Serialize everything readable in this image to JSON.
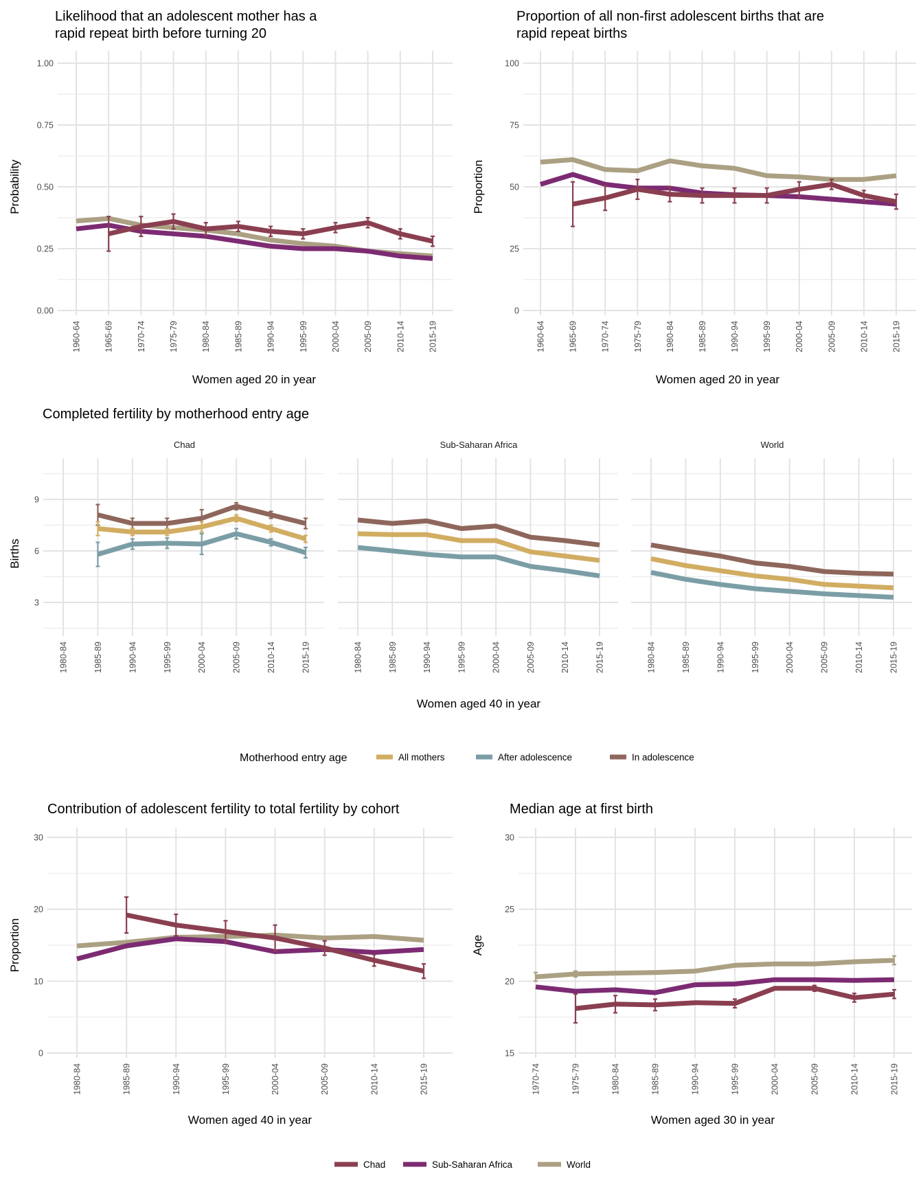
{
  "colors": {
    "chad": "#8a3f50",
    "ssa": "#7c2b72",
    "world": "#aba083",
    "all_mothers": "#d1ad62",
    "after_adolescence": "#7b9ea6",
    "in_adolescence": "#8e665b"
  },
  "chart_data": [
    {
      "id": "rapid-repeat-likelihood",
      "type": "line",
      "title": "Likelihood that an adolescent mother has a rapid repeat birth before turning 20",
      "title_lines": [
        "Likelihood that an adolescent mother has a",
        "rapid repeat birth before turning 20"
      ],
      "xlabel": "Women aged 20 in year",
      "ylabel": "Probability",
      "ylim": [
        0,
        1
      ],
      "yticks": [
        "0.00",
        "0.25",
        "0.50",
        "0.75",
        "1.00"
      ],
      "grid": true,
      "categories": [
        "1960-64",
        "1965-69",
        "1970-74",
        "1975-79",
        "1980-84",
        "1985-89",
        "1990-94",
        "1995-99",
        "2000-04",
        "2005-09",
        "2010-14",
        "2015-19"
      ],
      "series": [
        {
          "name": "World",
          "color_key": "world",
          "values": [
            0.362,
            0.372,
            0.345,
            0.335,
            0.325,
            0.31,
            0.285,
            0.27,
            0.26,
            0.24,
            0.23,
            0.22
          ],
          "error": null
        },
        {
          "name": "Sub-Saharan Africa",
          "color_key": "ssa",
          "values": [
            0.33,
            0.345,
            0.32,
            0.31,
            0.3,
            0.28,
            0.26,
            0.25,
            0.25,
            0.24,
            0.22,
            0.21
          ],
          "error": null
        },
        {
          "name": "Chad",
          "color_key": "chad",
          "values": [
            null,
            0.31,
            0.34,
            0.36,
            0.33,
            0.34,
            0.32,
            0.31,
            0.335,
            0.355,
            0.31,
            0.28
          ],
          "error": [
            null,
            0.07,
            0.04,
            0.03,
            0.025,
            0.02,
            0.02,
            0.02,
            0.02,
            0.02,
            0.02,
            0.02
          ]
        }
      ]
    },
    {
      "id": "rapid-repeat-proportion",
      "type": "line",
      "title": "Proportion of all non-first adolescent births that are rapid repeat births",
      "title_lines": [
        "Proportion of all non-first adolescent births that are",
        "rapid repeat births"
      ],
      "xlabel": "Women aged 20 in year",
      "ylabel": "Proportion",
      "ylim": [
        0,
        100
      ],
      "yticks": [
        "0",
        "25",
        "50",
        "75",
        "100"
      ],
      "grid": true,
      "categories": [
        "1960-64",
        "1965-69",
        "1970-74",
        "1975-79",
        "1980-84",
        "1985-89",
        "1990-94",
        "1995-99",
        "2000-04",
        "2005-09",
        "2010-14",
        "2015-19"
      ],
      "series": [
        {
          "name": "World",
          "color_key": "world",
          "values": [
            60,
            61,
            57,
            56.5,
            60.5,
            58.5,
            57.5,
            54.5,
            54,
            53,
            53,
            54.5
          ],
          "error": null
        },
        {
          "name": "Sub-Saharan Africa",
          "color_key": "ssa",
          "values": [
            51,
            55,
            51,
            49.5,
            49.5,
            47.5,
            46.8,
            46.5,
            46,
            45,
            44,
            43
          ],
          "error": null
        },
        {
          "name": "Chad",
          "color_key": "chad",
          "values": [
            null,
            43,
            45.5,
            49,
            47,
            46.5,
            46.5,
            46.5,
            49,
            51,
            46.5,
            44
          ],
          "error": [
            null,
            9,
            5,
            4,
            3,
            3,
            3,
            3,
            3,
            2,
            2,
            3
          ]
        }
      ]
    },
    {
      "id": "completed-fertility",
      "type": "line",
      "title": "Completed fertility by motherhood entry age",
      "xlabel": "Women aged 40 in year",
      "ylabel": "Births",
      "ylim": [
        1.2,
        11.4
      ],
      "yticks": [
        "3",
        "6",
        "9"
      ],
      "grid": true,
      "categories": [
        "1980-84",
        "1985-89",
        "1990-94",
        "1995-99",
        "2000-04",
        "2005-09",
        "2010-14",
        "2015-19"
      ],
      "legend": {
        "title": "Motherhood entry age",
        "entries": [
          {
            "label": "All mothers",
            "color_key": "all_mothers"
          },
          {
            "label": "After adolescence",
            "color_key": "after_adolescence"
          },
          {
            "label": "In adolescence",
            "color_key": "in_adolescence"
          }
        ]
      },
      "facets": [
        {
          "name": "Chad",
          "series": [
            {
              "name": "In adolescence",
              "color_key": "in_adolescence",
              "values": [
                null,
                8.1,
                7.6,
                7.6,
                7.9,
                8.6,
                8.1,
                7.6
              ],
              "error": [
                null,
                0.6,
                0.3,
                0.3,
                0.5,
                0.2,
                0.2,
                0.3
              ]
            },
            {
              "name": "All mothers",
              "color_key": "all_mothers",
              "values": [
                null,
                7.3,
                7.1,
                7.1,
                7.4,
                7.9,
                7.3,
                6.7
              ],
              "error": [
                null,
                0.4,
                0.2,
                0.2,
                0.3,
                0.2,
                0.2,
                0.2
              ]
            },
            {
              "name": "After adolescence",
              "color_key": "after_adolescence",
              "values": [
                null,
                5.8,
                6.4,
                6.45,
                6.4,
                7.0,
                6.5,
                5.9
              ],
              "error": [
                null,
                0.7,
                0.3,
                0.3,
                0.6,
                0.3,
                0.2,
                0.3
              ]
            }
          ]
        },
        {
          "name": "Sub-Saharan Africa",
          "series": [
            {
              "name": "In adolescence",
              "color_key": "in_adolescence",
              "values": [
                7.8,
                7.6,
                7.75,
                7.3,
                7.45,
                6.8,
                6.6,
                6.35
              ],
              "error": null
            },
            {
              "name": "All mothers",
              "color_key": "all_mothers",
              "values": [
                7.0,
                6.95,
                6.95,
                6.6,
                6.6,
                5.95,
                5.7,
                5.45
              ],
              "error": null
            },
            {
              "name": "After adolescence",
              "color_key": "after_adolescence",
              "values": [
                6.2,
                6.0,
                5.8,
                5.65,
                5.65,
                5.1,
                4.85,
                4.55
              ],
              "error": null
            }
          ]
        },
        {
          "name": "World",
          "series": [
            {
              "name": "In adolescence",
              "color_key": "in_adolescence",
              "values": [
                6.35,
                6.0,
                5.7,
                5.3,
                5.1,
                4.8,
                4.7,
                4.65
              ],
              "error": null
            },
            {
              "name": "All mothers",
              "color_key": "all_mothers",
              "values": [
                5.55,
                5.15,
                4.85,
                4.55,
                4.35,
                4.05,
                3.95,
                3.85
              ],
              "error": null
            },
            {
              "name": "After adolescence",
              "color_key": "after_adolescence",
              "values": [
                4.75,
                4.35,
                4.05,
                3.8,
                3.65,
                3.5,
                3.4,
                3.3
              ],
              "error": null
            }
          ]
        }
      ]
    },
    {
      "id": "adolescent-contribution",
      "type": "line",
      "title": "Contribution of adolescent fertility to total fertility by cohort",
      "xlabel": "Women aged 40 in year",
      "ylabel": "Proportion",
      "ylim": [
        0,
        30
      ],
      "yticks": [
        "0",
        "10",
        "20",
        "30"
      ],
      "grid": true,
      "categories": [
        "1980-84",
        "1985-89",
        "1990-94",
        "1995-99",
        "2000-04",
        "2005-09",
        "2010-14",
        "2015-19"
      ],
      "series": [
        {
          "name": "World",
          "color_key": "world",
          "values": [
            14.9,
            15.4,
            16.1,
            16.2,
            16.4,
            16.0,
            16.2,
            15.7
          ],
          "error": null
        },
        {
          "name": "Sub-Saharan Africa",
          "color_key": "ssa",
          "values": [
            13.1,
            14.9,
            15.9,
            15.5,
            14.1,
            14.4,
            14.0,
            14.4
          ],
          "error": null
        },
        {
          "name": "Chad",
          "color_key": "chad",
          "values": [
            null,
            19.2,
            17.8,
            16.9,
            16.0,
            14.6,
            12.9,
            11.4
          ],
          "error": [
            null,
            2.5,
            1.5,
            1.5,
            1.8,
            1.0,
            0.8,
            1.0
          ]
        }
      ]
    },
    {
      "id": "median-age-first-birth",
      "type": "line",
      "title": "Median age at first birth",
      "xlabel": "Women aged 30 in year",
      "ylabel": "Age",
      "ylim": [
        15,
        30
      ],
      "yticks": [
        "15",
        "20",
        "25",
        "30"
      ],
      "grid": true,
      "categories": [
        "1970-74",
        "1975-79",
        "1980-84",
        "1985-89",
        "1990-94",
        "1995-99",
        "2000-04",
        "2005-09",
        "2010-14",
        "2015-19"
      ],
      "series": [
        {
          "name": "World",
          "color_key": "world",
          "values": [
            20.3,
            20.5,
            20.55,
            20.6,
            20.7,
            21.1,
            21.2,
            21.2,
            21.35,
            21.45
          ],
          "error": [
            0.3,
            0.2,
            null,
            null,
            null,
            null,
            null,
            0.1,
            0.1,
            0.3
          ]
        },
        {
          "name": "Sub-Saharan Africa",
          "color_key": "ssa",
          "values": [
            19.6,
            19.3,
            19.4,
            19.2,
            19.75,
            19.8,
            20.1,
            20.1,
            20.05,
            20.1
          ],
          "error": null
        },
        {
          "name": "Chad",
          "color_key": "chad",
          "values": [
            null,
            18.1,
            18.4,
            18.35,
            18.5,
            18.45,
            19.5,
            19.5,
            18.85,
            19.1
          ],
          "error": [
            null,
            1.0,
            0.6,
            0.4,
            null,
            0.3,
            null,
            0.2,
            0.3,
            0.3
          ]
        }
      ]
    }
  ],
  "bottom_legend": {
    "entries": [
      {
        "label": "Chad",
        "color_key": "chad"
      },
      {
        "label": "Sub-Saharan Africa",
        "color_key": "ssa"
      },
      {
        "label": "World",
        "color_key": "world"
      }
    ]
  }
}
